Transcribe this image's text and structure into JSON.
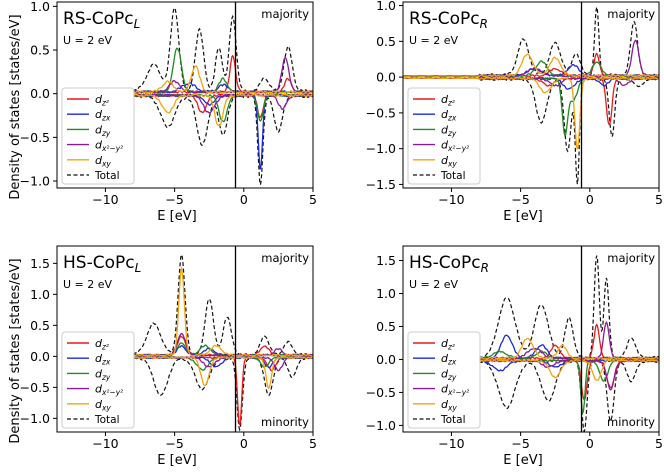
{
  "colors": {
    "dz2": "#e8191b",
    "dzx": "#1c29d6",
    "dzy": "#218a21",
    "dx2y2": "#8b1a9a",
    "dxy": "#f3a50f",
    "total": "#111111"
  },
  "legend": [
    {
      "key": "dz2",
      "main": "d",
      "sub": "z²",
      "dash": false
    },
    {
      "key": "dzx",
      "main": "d",
      "sub": "zx",
      "dash": false
    },
    {
      "key": "dzy",
      "main": "d",
      "sub": "zy",
      "dash": false
    },
    {
      "key": "dx2y2",
      "main": "d",
      "sub": "x²−y²",
      "dash": false
    },
    {
      "key": "dxy",
      "main": "d",
      "sub": "xy",
      "dash": false
    },
    {
      "key": "total",
      "main": "Total",
      "sub": "",
      "dash": true
    }
  ],
  "chart_data": [
    {
      "type": "line",
      "title_main": "RS-CoPc",
      "title_sub": "L",
      "subtitle": "U = 2 eV",
      "annotation_top": "majority",
      "annotation_bottom": "",
      "xlabel": "E [eV]",
      "ylabel": "Density of states [states/eV]",
      "xlim": [
        -13.5,
        5
      ],
      "ylim": [
        -1.08,
        1.05
      ],
      "xticks": [
        -10,
        -5,
        0,
        5
      ],
      "yticks": [
        -1.0,
        -0.5,
        0.0,
        0.5,
        1.0
      ],
      "ytick_labels": [
        "−1.0",
        "−0.5",
        "0.0",
        "0.5",
        "1.0"
      ],
      "xtick_labels": [
        "−10",
        "−5",
        "0",
        "5"
      ],
      "fermi_level": -0.6,
      "curve_xrange": [
        -8,
        5
      ],
      "series": [
        {
          "name": "Total",
          "key": "total",
          "up": [
            [
              -5,
              0.95,
              0.3
            ],
            [
              -3.2,
              0.7,
              0.3
            ],
            [
              -1.8,
              0.5,
              0.25
            ],
            [
              -0.8,
              0.85,
              0.25
            ],
            [
              1.5,
              0.15,
              0.3
            ],
            [
              3.2,
              0.5,
              0.3
            ],
            [
              -6.5,
              0.3,
              0.5
            ]
          ],
          "down": [
            [
              -5.5,
              0.35,
              0.5
            ],
            [
              -3,
              0.55,
              0.4
            ],
            [
              -1.5,
              0.45,
              0.3
            ],
            [
              1.2,
              1.0,
              0.18
            ],
            [
              2.5,
              0.4,
              0.3
            ]
          ]
        },
        {
          "name": "d_z2",
          "key": "dz2",
          "up": [
            [
              -0.8,
              0.42,
              0.2
            ],
            [
              3.2,
              0.15,
              0.25
            ]
          ],
          "down": [
            [
              -3,
              0.2,
              0.3
            ],
            [
              1.2,
              0.25,
              0.2
            ]
          ]
        },
        {
          "name": "d_zx",
          "key": "dzx",
          "up": [
            [
              -4,
              0.1,
              0.5
            ],
            [
              -1.5,
              0.08,
              0.4
            ]
          ],
          "down": [
            [
              1.2,
              0.85,
              0.15
            ],
            [
              -2.5,
              0.1,
              0.4
            ]
          ]
        },
        {
          "name": "d_zy",
          "key": "dzy",
          "up": [
            [
              -4.8,
              0.5,
              0.3
            ],
            [
              -1.5,
              0.15,
              0.3
            ]
          ],
          "down": [
            [
              -1.5,
              0.3,
              0.3
            ],
            [
              1.2,
              0.3,
              0.2
            ]
          ]
        },
        {
          "name": "d_x2-y2",
          "key": "dx2y2",
          "up": [
            [
              3.0,
              0.4,
              0.25
            ],
            [
              -5,
              0.12,
              0.4
            ]
          ],
          "down": [
            [
              -2.5,
              0.2,
              0.4
            ],
            [
              2.8,
              0.15,
              0.3
            ]
          ]
        },
        {
          "name": "d_xy",
          "key": "dxy",
          "up": [
            [
              -3.5,
              0.3,
              0.3
            ],
            [
              -5.5,
              0.12,
              0.4
            ]
          ],
          "down": [
            [
              -5.5,
              0.2,
              0.4
            ],
            [
              -1.8,
              0.35,
              0.3
            ]
          ]
        }
      ]
    },
    {
      "type": "line",
      "title_main": "RS-CoPc",
      "title_sub": "R",
      "subtitle": "U = 2 eV",
      "annotation_top": "majority",
      "annotation_bottom": "",
      "xlabel": "E [eV]",
      "ylabel": "",
      "xlim": [
        -13.5,
        5
      ],
      "ylim": [
        -1.55,
        1.05
      ],
      "xticks": [
        -10,
        -5,
        0,
        5
      ],
      "yticks": [
        -1.5,
        -1.0,
        -0.5,
        0.0,
        0.5,
        1.0
      ],
      "ytick_labels": [
        "−1.5",
        "−1.0",
        "−0.5",
        "0.0",
        "0.5",
        "1.0"
      ],
      "xtick_labels": [
        "−10",
        "−5",
        "0",
        "5"
      ],
      "fermi_level": -0.6,
      "curve_xrange": [
        -13.5,
        5
      ],
      "series": [
        {
          "name": "Total",
          "key": "total",
          "up": [
            [
              -4.8,
              0.5,
              0.4
            ],
            [
              -2.5,
              0.45,
              0.4
            ],
            [
              -1,
              0.3,
              0.3
            ],
            [
              0.5,
              0.95,
              0.15
            ],
            [
              3.2,
              0.75,
              0.25
            ]
          ],
          "down": [
            [
              -3.5,
              0.6,
              0.4
            ],
            [
              -1.6,
              1.0,
              0.25
            ],
            [
              -0.9,
              1.45,
              0.15
            ],
            [
              1.6,
              0.8,
              0.2
            ],
            [
              3.5,
              0.1,
              0.3
            ]
          ]
        },
        {
          "name": "d_z2",
          "key": "dz2",
          "up": [
            [
              0.5,
              0.3,
              0.2
            ],
            [
              -2.5,
              0.1,
              0.4
            ]
          ],
          "down": [
            [
              1.4,
              0.65,
              0.2
            ],
            [
              -3,
              0.1,
              0.4
            ]
          ]
        },
        {
          "name": "d_zx",
          "key": "dzx",
          "up": [
            [
              -4,
              0.1,
              0.5
            ],
            [
              -1.2,
              0.15,
              0.4
            ]
          ],
          "down": [
            [
              -1.5,
              0.15,
              0.4
            ],
            [
              1.0,
              0.1,
              0.3
            ]
          ]
        },
        {
          "name": "d_zy",
          "key": "dzy",
          "up": [
            [
              -3.5,
              0.2,
              0.4
            ],
            [
              0.5,
              0.2,
              0.3
            ]
          ],
          "down": [
            [
              -1.8,
              0.75,
              0.2
            ],
            [
              -1.2,
              0.3,
              0.3
            ]
          ]
        },
        {
          "name": "d_x2-y2",
          "key": "dx2y2",
          "up": [
            [
              3.3,
              0.5,
              0.25
            ],
            [
              -4,
              0.1,
              0.5
            ]
          ],
          "down": [
            [
              -2.5,
              0.1,
              0.4
            ],
            [
              2.5,
              0.1,
              0.3
            ]
          ]
        },
        {
          "name": "d_xy",
          "key": "dxy",
          "up": [
            [
              -4.5,
              0.3,
              0.4
            ],
            [
              -2.5,
              0.25,
              0.4
            ]
          ],
          "down": [
            [
              -0.9,
              1.0,
              0.18
            ],
            [
              -3.2,
              0.2,
              0.4
            ]
          ]
        }
      ]
    },
    {
      "type": "line",
      "title_main": "HS-CoPc",
      "title_sub": "L",
      "subtitle": "U = 2 eV",
      "annotation_top": "majority",
      "annotation_bottom": "minority",
      "xlabel": "E [eV]",
      "ylabel": "Density of states [states/eV]",
      "xlim": [
        -13.5,
        5
      ],
      "ylim": [
        -1.22,
        1.78
      ],
      "xticks": [
        -10,
        -5,
        0,
        5
      ],
      "yticks": [
        -1.0,
        -0.5,
        0.0,
        0.5,
        1.0,
        1.5
      ],
      "ytick_labels": [
        "−1.0",
        "−0.5",
        "0.0",
        "0.5",
        "1.0",
        "1.5"
      ],
      "xtick_labels": [
        "−10",
        "−5",
        "0",
        "5"
      ],
      "fermi_level": -0.6,
      "curve_xrange": [
        -8,
        5
      ],
      "series": [
        {
          "name": "Total",
          "key": "total",
          "up": [
            [
              -4.5,
              1.6,
              0.25
            ],
            [
              -6.5,
              0.5,
              0.5
            ],
            [
              -2.5,
              0.9,
              0.3
            ],
            [
              -1.2,
              0.6,
              0.3
            ],
            [
              1.5,
              0.3,
              0.3
            ],
            [
              3.2,
              0.2,
              0.3
            ]
          ],
          "down": [
            [
              -6,
              0.6,
              0.5
            ],
            [
              -3,
              0.5,
              0.5
            ],
            [
              -0.3,
              1.15,
              0.2
            ],
            [
              1.8,
              0.6,
              0.3
            ],
            [
              3.5,
              0.3,
              0.3
            ]
          ]
        },
        {
          "name": "d_z2",
          "key": "dz2",
          "up": [
            [
              -4.5,
              0.3,
              0.3
            ],
            [
              1.5,
              0.15,
              0.3
            ]
          ],
          "down": [
            [
              -0.3,
              1.1,
              0.15
            ],
            [
              2,
              0.2,
              0.3
            ]
          ]
        },
        {
          "name": "d_zx",
          "key": "dzx",
          "up": [
            [
              -4.5,
              0.15,
              0.3
            ],
            [
              -2.5,
              0.1,
              0.4
            ]
          ],
          "down": [
            [
              -2,
              0.15,
              0.4
            ],
            [
              1.8,
              0.15,
              0.3
            ]
          ]
        },
        {
          "name": "d_zy",
          "key": "dzy",
          "up": [
            [
              -4.5,
              0.2,
              0.3
            ],
            [
              -2.8,
              0.15,
              0.4
            ]
          ],
          "down": [
            [
              -3,
              0.2,
              0.4
            ],
            [
              1.5,
              0.15,
              0.3
            ]
          ]
        },
        {
          "name": "d_x2-y2",
          "key": "dx2y2",
          "up": [
            [
              -4.5,
              0.35,
              0.3
            ],
            [
              2.5,
              0.1,
              0.3
            ]
          ],
          "down": [
            [
              -2.5,
              0.15,
              0.4
            ],
            [
              2.5,
              0.2,
              0.3
            ]
          ]
        },
        {
          "name": "d_xy",
          "key": "dxy",
          "up": [
            [
              -4.5,
              1.4,
              0.2
            ],
            [
              -2,
              0.15,
              0.4
            ]
          ],
          "down": [
            [
              -2.8,
              0.45,
              0.3
            ],
            [
              1.8,
              0.5,
              0.2
            ]
          ]
        }
      ]
    },
    {
      "type": "line",
      "title_main": "HS-CoPc",
      "title_sub": "R",
      "subtitle": "U = 2 eV",
      "annotation_top": "majority",
      "annotation_bottom": "minority",
      "xlabel": "E [eV]",
      "ylabel": "",
      "xlim": [
        -13.5,
        5
      ],
      "ylim": [
        -1.1,
        1.72
      ],
      "xticks": [
        -10,
        -5,
        0,
        5
      ],
      "yticks": [
        -1.0,
        -0.5,
        0.0,
        0.5,
        1.0,
        1.5
      ],
      "ytick_labels": [
        "−1.0",
        "−0.5",
        "0.0",
        "0.5",
        "1.0",
        "1.5"
      ],
      "xtick_labels": [
        "−10",
        "−5",
        "0",
        "5"
      ],
      "fermi_level": -0.6,
      "curve_xrange": [
        -8,
        5
      ],
      "series": [
        {
          "name": "Total",
          "key": "total",
          "up": [
            [
              -6,
              0.9,
              0.6
            ],
            [
              -3.5,
              0.8,
              0.5
            ],
            [
              -1.5,
              0.6,
              0.3
            ],
            [
              0.5,
              1.55,
              0.18
            ],
            [
              1.2,
              1.2,
              0.18
            ],
            [
              3,
              0.3,
              0.3
            ]
          ],
          "down": [
            [
              -6,
              0.7,
              0.6
            ],
            [
              -3,
              0.6,
              0.5
            ],
            [
              -0.4,
              1.05,
              0.2
            ],
            [
              1.5,
              0.9,
              0.25
            ],
            [
              3,
              0.3,
              0.3
            ]
          ]
        },
        {
          "name": "d_z2",
          "key": "dz2",
          "up": [
            [
              -2.5,
              0.2,
              0.3
            ],
            [
              0.5,
              0.5,
              0.2
            ]
          ],
          "down": [
            [
              -0.4,
              0.6,
              0.2
            ],
            [
              1.5,
              0.4,
              0.3
            ]
          ]
        },
        {
          "name": "d_zx",
          "key": "dzx",
          "up": [
            [
              -6,
              0.35,
              0.4
            ],
            [
              -3.5,
              0.2,
              0.4
            ]
          ],
          "down": [
            [
              -6.5,
              0.15,
              0.5
            ],
            [
              -2.5,
              0.1,
              0.4
            ]
          ]
        },
        {
          "name": "d_zy",
          "key": "dzy",
          "up": [
            [
              -6.5,
              0.1,
              0.5
            ],
            [
              -3.5,
              0.1,
              0.4
            ]
          ],
          "down": [
            [
              -0.5,
              0.8,
              0.15
            ],
            [
              1,
              0.3,
              0.3
            ]
          ]
        },
        {
          "name": "d_x2-y2",
          "key": "dx2y2",
          "up": [
            [
              1.2,
              0.55,
              0.2
            ],
            [
              -4,
              0.15,
              0.5
            ]
          ],
          "down": [
            [
              1.5,
              0.45,
              0.25
            ],
            [
              -3,
              0.1,
              0.4
            ]
          ]
        },
        {
          "name": "d_xy",
          "key": "dxy",
          "up": [
            [
              -4.5,
              0.3,
              0.4
            ],
            [
              -2,
              0.2,
              0.3
            ]
          ],
          "down": [
            [
              -2.5,
              0.25,
              0.4
            ],
            [
              0.5,
              0.3,
              0.3
            ]
          ]
        }
      ]
    }
  ]
}
